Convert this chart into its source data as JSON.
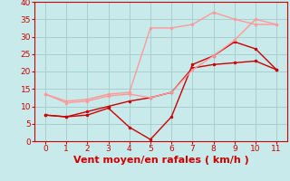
{
  "xlabel": "Vent moyen/en rafales ( km/h )",
  "xlim": [
    -0.5,
    11.5
  ],
  "ylim": [
    0,
    40
  ],
  "xticks": [
    0,
    1,
    2,
    3,
    4,
    5,
    6,
    7,
    8,
    9,
    10,
    11
  ],
  "yticks": [
    0,
    5,
    10,
    15,
    20,
    25,
    30,
    35,
    40
  ],
  "bg_color": "#c8eaea",
  "grid_color": "#a8d0d0",
  "series": [
    {
      "x": [
        0,
        1,
        2,
        3,
        4,
        5,
        6,
        7,
        8,
        9,
        10,
        11
      ],
      "y": [
        7.5,
        7.0,
        7.5,
        9.5,
        4.0,
        0.5,
        7.0,
        22.0,
        24.5,
        28.5,
        26.5,
        20.5
      ],
      "color": "#cc0000",
      "linewidth": 1.0,
      "marker": "o",
      "markersize": 2.0
    },
    {
      "x": [
        0,
        1,
        2,
        3,
        4,
        5,
        6,
        7,
        8,
        9,
        10,
        11
      ],
      "y": [
        7.5,
        7.0,
        8.5,
        10.0,
        11.5,
        12.5,
        14.0,
        21.0,
        22.0,
        22.5,
        23.0,
        20.5
      ],
      "color": "#cc0000",
      "linewidth": 1.0,
      "marker": "o",
      "markersize": 2.0
    },
    {
      "x": [
        0,
        1,
        2,
        3,
        4,
        5,
        6,
        7,
        8,
        9,
        10,
        11
      ],
      "y": [
        13.5,
        11.0,
        11.5,
        13.0,
        13.5,
        12.5,
        14.0,
        20.5,
        24.5,
        29.0,
        35.0,
        33.5
      ],
      "color": "#ff9999",
      "linewidth": 1.0,
      "marker": "o",
      "markersize": 2.0
    },
    {
      "x": [
        0,
        1,
        2,
        3,
        4,
        5,
        6,
        7,
        8,
        9,
        10,
        11
      ],
      "y": [
        13.5,
        11.5,
        12.0,
        13.5,
        14.0,
        32.5,
        32.5,
        33.5,
        37.0,
        35.0,
        33.5,
        33.5
      ],
      "color": "#ff9999",
      "linewidth": 1.0,
      "marker": "o",
      "markersize": 2.0
    }
  ],
  "axis_color": "#cc0000",
  "tick_color": "#cc0000",
  "label_color": "#cc0000",
  "xlabel_fontsize": 8,
  "tick_fontsize": 6.5
}
